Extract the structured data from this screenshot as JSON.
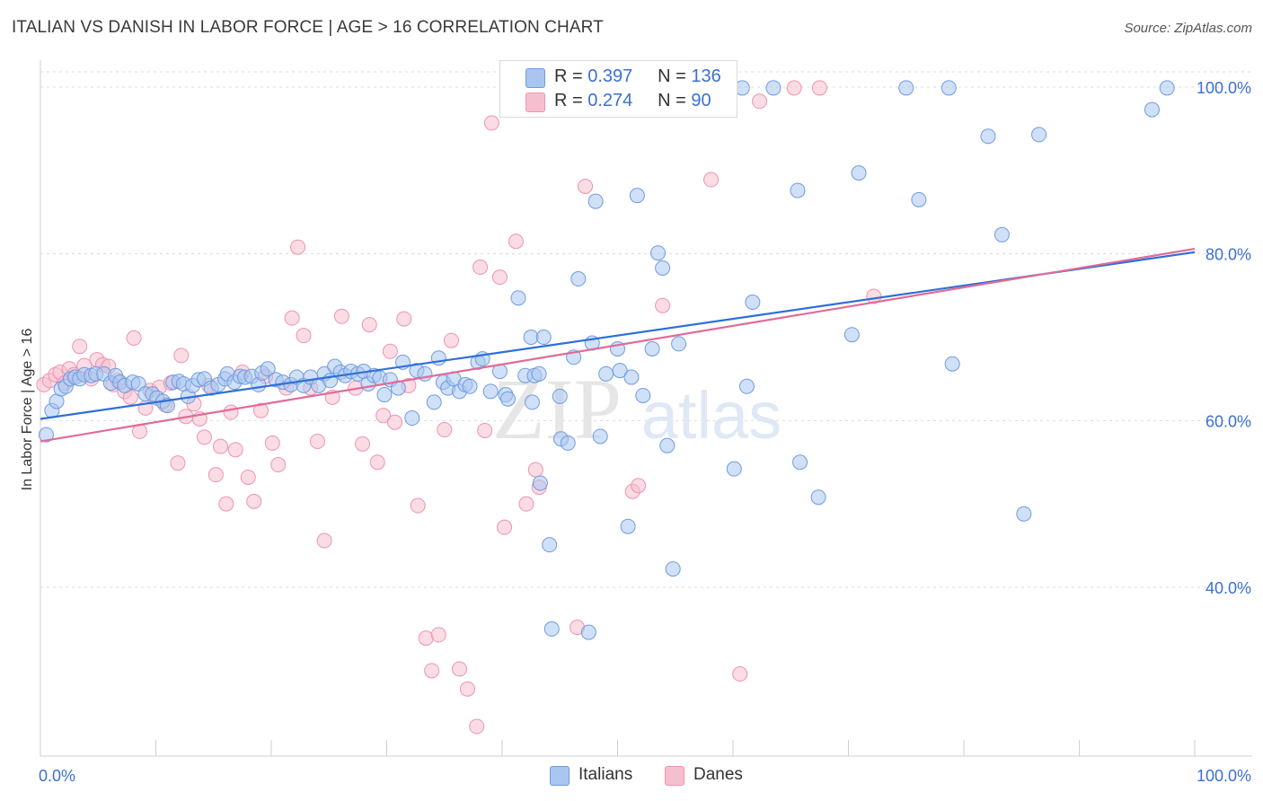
{
  "title": "ITALIAN VS DANISH IN LABOR FORCE | AGE > 16 CORRELATION CHART",
  "source": "Source: ZipAtlas.com",
  "watermark": {
    "zip": "ZIP",
    "atlas": "atlas"
  },
  "legend": {
    "r_label": "R =",
    "n_label": "N =",
    "italians": {
      "r": "0.397",
      "n": "136"
    },
    "danes": {
      "r": "0.274",
      "n": "90"
    }
  },
  "colors": {
    "italians_fill": "#a9c6f0",
    "italians_stroke": "#6f9be0",
    "italians_line": "#2f6fd6",
    "danes_fill": "#f6bfd0",
    "danes_stroke": "#ee93b0",
    "danes_line": "#e06b98",
    "tick_label": "#3b6fd4"
  },
  "chart_data": {
    "type": "scatter",
    "title": "ITALIAN VS DANISH IN LABOR FORCE | AGE > 16 CORRELATION CHART",
    "xlabel": "",
    "ylabel": "In Labor Force | Age > 16",
    "xlim": [
      0,
      100
    ],
    "ylim": [
      20,
      102
    ],
    "x_tick_labels": [
      "0.0%",
      "100.0%"
    ],
    "y_ticks": [
      40,
      60,
      80,
      100
    ],
    "y_tick_labels": [
      "40.0%",
      "60.0%",
      "80.0%",
      "100.0%"
    ],
    "grid": true,
    "legend_position": "top-center",
    "series": [
      {
        "name": "Italians",
        "r": 0.397,
        "n": 136,
        "trend": {
          "x": [
            0,
            100
          ],
          "y": [
            60.2,
            80.2
          ]
        },
        "points": [
          [
            0.5,
            58.3
          ],
          [
            1,
            61.2
          ],
          [
            1.4,
            62.3
          ],
          [
            1.8,
            63.8
          ],
          [
            2.2,
            64.1
          ],
          [
            2.6,
            65.0
          ],
          [
            3.0,
            65.2
          ],
          [
            3.4,
            65.0
          ],
          [
            3.8,
            65.5
          ],
          [
            4.4,
            65.4
          ],
          [
            4.8,
            65.6
          ],
          [
            5.5,
            65.6
          ],
          [
            6.1,
            64.5
          ],
          [
            6.5,
            65.4
          ],
          [
            6.9,
            64.6
          ],
          [
            7.3,
            64.2
          ],
          [
            8.0,
            64.6
          ],
          [
            8.5,
            64.4
          ],
          [
            9.1,
            63.2
          ],
          [
            9.7,
            63.2
          ],
          [
            10.1,
            62.7
          ],
          [
            10.6,
            62.3
          ],
          [
            11.0,
            61.8
          ],
          [
            11.5,
            64.6
          ],
          [
            12.0,
            64.7
          ],
          [
            12.4,
            64.4
          ],
          [
            12.8,
            62.9
          ],
          [
            13.2,
            64.2
          ],
          [
            13.7,
            64.9
          ],
          [
            14.2,
            65.0
          ],
          [
            14.8,
            63.9
          ],
          [
            15.4,
            64.3
          ],
          [
            16.0,
            65.0
          ],
          [
            16.2,
            65.6
          ],
          [
            16.8,
            64.6
          ],
          [
            17.3,
            65.3
          ],
          [
            17.7,
            65.2
          ],
          [
            18.3,
            65.3
          ],
          [
            18.9,
            64.3
          ],
          [
            19.2,
            65.7
          ],
          [
            19.7,
            66.2
          ],
          [
            20.4,
            64.9
          ],
          [
            21.0,
            64.6
          ],
          [
            21.7,
            64.3
          ],
          [
            22.2,
            65.2
          ],
          [
            22.8,
            64.2
          ],
          [
            23.4,
            65.2
          ],
          [
            24.1,
            64.2
          ],
          [
            24.6,
            65.6
          ],
          [
            25.1,
            64.8
          ],
          [
            25.5,
            66.5
          ],
          [
            26.0,
            65.8
          ],
          [
            26.4,
            65.4
          ],
          [
            26.9,
            65.9
          ],
          [
            27.5,
            65.6
          ],
          [
            28.0,
            65.9
          ],
          [
            28.4,
            64.4
          ],
          [
            28.9,
            65.4
          ],
          [
            29.4,
            65.1
          ],
          [
            29.8,
            63.1
          ],
          [
            30.3,
            64.9
          ],
          [
            31.0,
            63.9
          ],
          [
            31.4,
            67.0
          ],
          [
            32.2,
            60.3
          ],
          [
            32.6,
            66.0
          ],
          [
            33.3,
            65.6
          ],
          [
            34.1,
            62.2
          ],
          [
            34.5,
            67.5
          ],
          [
            34.9,
            64.6
          ],
          [
            35.3,
            63.9
          ],
          [
            35.8,
            65.0
          ],
          [
            36.3,
            63.5
          ],
          [
            36.8,
            64.3
          ],
          [
            37.2,
            64.1
          ],
          [
            37.9,
            67.0
          ],
          [
            38.3,
            67.4
          ],
          [
            39.0,
            63.5
          ],
          [
            39.8,
            65.9
          ],
          [
            40.3,
            63.1
          ],
          [
            40.5,
            62.6
          ],
          [
            41.4,
            74.7
          ],
          [
            42.0,
            65.4
          ],
          [
            42.5,
            70.0
          ],
          [
            42.6,
            62.2
          ],
          [
            42.8,
            65.4
          ],
          [
            43.2,
            65.6
          ],
          [
            43.3,
            52.5
          ],
          [
            43.6,
            70.0
          ],
          [
            44.1,
            45.1
          ],
          [
            44.3,
            35.0
          ],
          [
            45.0,
            62.9
          ],
          [
            45.1,
            57.8
          ],
          [
            45.7,
            57.3
          ],
          [
            46.2,
            67.6
          ],
          [
            46.6,
            77.0
          ],
          [
            47.5,
            34.6
          ],
          [
            47.8,
            69.3
          ],
          [
            48.1,
            86.3
          ],
          [
            48.5,
            58.1
          ],
          [
            49.0,
            65.6
          ],
          [
            50.0,
            68.6
          ],
          [
            50.2,
            66.0
          ],
          [
            50.9,
            47.3
          ],
          [
            51.2,
            65.2
          ],
          [
            51.7,
            87.0
          ],
          [
            52.2,
            63.0
          ],
          [
            53.0,
            68.6
          ],
          [
            53.5,
            80.1
          ],
          [
            53.9,
            78.3
          ],
          [
            54.3,
            57.0
          ],
          [
            54.8,
            42.2
          ],
          [
            55.3,
            69.2
          ],
          [
            60.1,
            54.2
          ],
          [
            61.2,
            64.1
          ],
          [
            61.7,
            74.2
          ],
          [
            65.6,
            87.6
          ],
          [
            65.8,
            55.0
          ],
          [
            67.4,
            50.8
          ],
          [
            70.3,
            70.3
          ],
          [
            70.9,
            89.7
          ],
          [
            76.1,
            86.5
          ],
          [
            79.0,
            66.8
          ],
          [
            82.1,
            94.1
          ],
          [
            83.3,
            82.3
          ],
          [
            85.2,
            48.8
          ],
          [
            86.5,
            94.3
          ],
          [
            96.3,
            97.3
          ],
          [
            97.6,
            99.9
          ],
          [
            55.7,
            99.9
          ],
          [
            57.7,
            99.9
          ],
          [
            60.8,
            99.9
          ],
          [
            63.5,
            99.9
          ],
          [
            75.0,
            99.9
          ],
          [
            78.7,
            99.9
          ]
        ]
      },
      {
        "name": "Danes",
        "r": 0.274,
        "n": 90,
        "trend": {
          "x": [
            0,
            100
          ],
          "y": [
            57.5,
            80.6
          ]
        },
        "points": [
          [
            0.3,
            64.3
          ],
          [
            0.8,
            64.8
          ],
          [
            1.3,
            65.5
          ],
          [
            1.7,
            65.8
          ],
          [
            2.1,
            64.5
          ],
          [
            2.5,
            66.2
          ],
          [
            2.9,
            65.5
          ],
          [
            3.4,
            68.9
          ],
          [
            3.8,
            66.6
          ],
          [
            4.4,
            65.0
          ],
          [
            4.9,
            67.3
          ],
          [
            5.4,
            66.7
          ],
          [
            5.9,
            66.5
          ],
          [
            6.3,
            64.3
          ],
          [
            6.7,
            64.8
          ],
          [
            7.3,
            63.5
          ],
          [
            7.8,
            62.8
          ],
          [
            8.1,
            69.9
          ],
          [
            8.6,
            58.7
          ],
          [
            9.1,
            61.5
          ],
          [
            9.5,
            63.6
          ],
          [
            10.3,
            64.0
          ],
          [
            10.8,
            61.9
          ],
          [
            11.3,
            64.5
          ],
          [
            11.9,
            54.9
          ],
          [
            12.2,
            67.8
          ],
          [
            12.6,
            60.5
          ],
          [
            13.3,
            62.0
          ],
          [
            13.8,
            60.2
          ],
          [
            14.2,
            58.0
          ],
          [
            14.6,
            64.2
          ],
          [
            15.2,
            53.5
          ],
          [
            15.6,
            56.9
          ],
          [
            16.1,
            50.0
          ],
          [
            16.5,
            61.0
          ],
          [
            16.9,
            56.5
          ],
          [
            17.5,
            65.8
          ],
          [
            18.0,
            53.2
          ],
          [
            18.5,
            50.3
          ],
          [
            19.1,
            61.2
          ],
          [
            19.5,
            65.3
          ],
          [
            20.1,
            57.3
          ],
          [
            20.6,
            54.7
          ],
          [
            21.3,
            63.9
          ],
          [
            21.8,
            72.3
          ],
          [
            22.3,
            80.8
          ],
          [
            22.8,
            70.2
          ],
          [
            23.4,
            63.9
          ],
          [
            24.0,
            57.5
          ],
          [
            24.6,
            45.6
          ],
          [
            25.3,
            62.8
          ],
          [
            26.1,
            72.5
          ],
          [
            27.3,
            63.9
          ],
          [
            27.9,
            57.2
          ],
          [
            28.5,
            71.5
          ],
          [
            29.2,
            55.0
          ],
          [
            29.7,
            60.6
          ],
          [
            30.3,
            68.3
          ],
          [
            30.7,
            59.8
          ],
          [
            31.5,
            72.2
          ],
          [
            31.9,
            64.2
          ],
          [
            32.7,
            49.8
          ],
          [
            33.4,
            33.9
          ],
          [
            33.9,
            30.0
          ],
          [
            34.5,
            34.3
          ],
          [
            35.0,
            58.9
          ],
          [
            35.6,
            69.6
          ],
          [
            36.3,
            30.2
          ],
          [
            37.0,
            27.8
          ],
          [
            37.8,
            23.3
          ],
          [
            38.1,
            78.4
          ],
          [
            38.5,
            58.8
          ],
          [
            39.1,
            95.7
          ],
          [
            39.8,
            77.2
          ],
          [
            40.2,
            47.2
          ],
          [
            41.2,
            81.5
          ],
          [
            42.1,
            50.0
          ],
          [
            42.9,
            54.1
          ],
          [
            43.2,
            52.0
          ],
          [
            46.5,
            35.2
          ],
          [
            47.2,
            88.1
          ],
          [
            51.3,
            51.5
          ],
          [
            51.8,
            52.2
          ],
          [
            53.9,
            73.8
          ],
          [
            58.1,
            88.9
          ],
          [
            60.6,
            29.6
          ],
          [
            62.3,
            98.3
          ],
          [
            65.3,
            99.9
          ],
          [
            67.5,
            99.9
          ],
          [
            72.2,
            74.9
          ]
        ]
      }
    ]
  }
}
